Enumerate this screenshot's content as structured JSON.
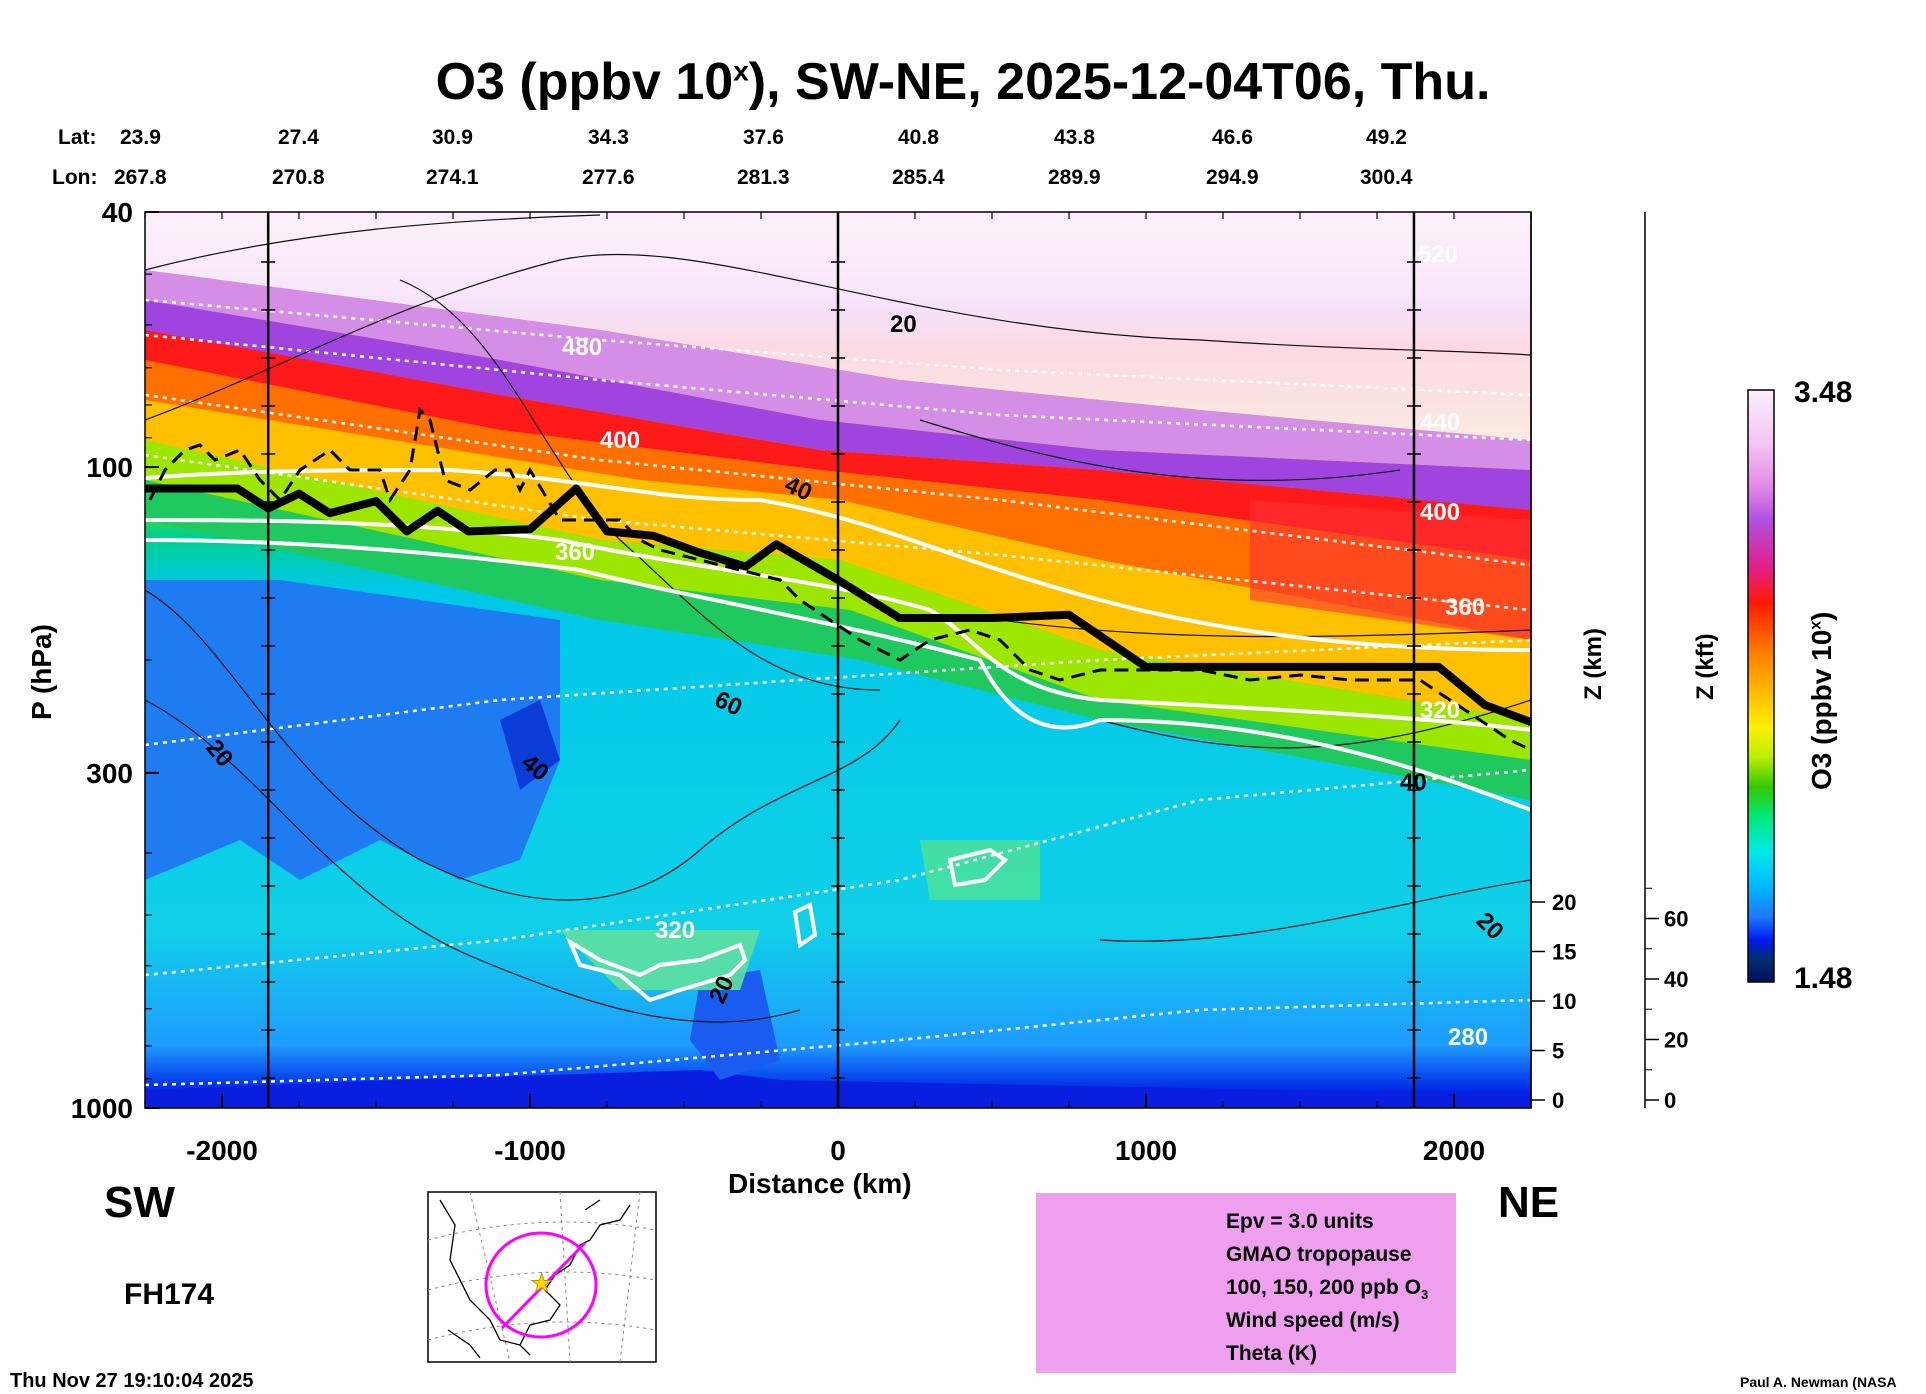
{
  "title_main": "O3 (ppbv 10",
  "title_sup": "x",
  "title_rest": "), SW-NE, 2025-12-04T06, Thu.",
  "lat_label": "Lat:",
  "lon_label": "Lon:",
  "lats": [
    "23.9",
    "27.4",
    "30.9",
    "34.3",
    "37.6",
    "40.8",
    "43.8",
    "46.6",
    "49.2"
  ],
  "lons": [
    "267.8",
    "270.8",
    "274.1",
    "277.6",
    "281.3",
    "285.4",
    "289.9",
    "294.9",
    "300.4"
  ],
  "direction_left": "SW",
  "direction_right": "NE",
  "forecast_hour": "FH174",
  "timestamp": "Thu Nov 27 19:10:04 2025",
  "credit": "Paul A. Newman (NASA",
  "colorbar": {
    "label": "O3 (ppbv 10",
    "label_sup": "x",
    "label_end": ")",
    "max": "3.48",
    "min": "1.48"
  },
  "legend": {
    "epv": "Epv = 3.0 units",
    "tropopause": "GMAO tropopause",
    "ozone": "100, 150, 200 ppb O",
    "ozone_sub": "3",
    "wind": "Wind speed (m/s)",
    "theta": "Theta (K)"
  },
  "colors": {
    "background": "#ffffff",
    "legend_bg": "#ee9fee",
    "map_circle": "#ff00ff",
    "map_star": "#ffd700"
  },
  "chart_data": {
    "type": "heatmap",
    "title": "O3 (ppbv 10^x), SW-NE, 2025-12-04T06, Thu.",
    "xlabel": "Distance (km)",
    "ylabel": "P (hPa)",
    "y2label": "Z (km)",
    "y3label": "Z (kft)",
    "colorbar_label": "O3 (ppbv 10^x)",
    "xlim": [
      -2250,
      2250
    ],
    "x_ticks": [
      "-2000",
      "-1000",
      "0",
      "1000",
      "2000"
    ],
    "x_tick_values": [
      -2000,
      -1000,
      0,
      1000,
      2000
    ],
    "y_ticks": [
      "40",
      "100",
      "300",
      "1000"
    ],
    "y_tick_values": [
      40,
      100,
      300,
      1000
    ],
    "z_km_ticks": [
      "20",
      "15",
      "10",
      "5",
      "0"
    ],
    "z_km_values": [
      20,
      15,
      10,
      5,
      0
    ],
    "z_kft_ticks": [
      "60",
      "40",
      "20",
      "0"
    ],
    "z_kft_values": [
      60,
      40,
      20,
      0
    ],
    "colorbar_range": [
      1.48,
      3.48
    ],
    "lat_lon_marker_distances_km": [
      -2250,
      -1750,
      -1250,
      -750,
      -250,
      250,
      750,
      1250,
      1750
    ],
    "vertical_reference_lines_km": [
      -1850,
      0,
      1870
    ],
    "tropopause_hPa": [
      {
        "x": -2250,
        "p": 108
      },
      {
        "x": -1950,
        "p": 108
      },
      {
        "x": -1850,
        "p": 116
      },
      {
        "x": -1750,
        "p": 110
      },
      {
        "x": -1650,
        "p": 118
      },
      {
        "x": -1500,
        "p": 113
      },
      {
        "x": -1400,
        "p": 126
      },
      {
        "x": -1300,
        "p": 117
      },
      {
        "x": -1200,
        "p": 126
      },
      {
        "x": -1000,
        "p": 125
      },
      {
        "x": -850,
        "p": 108
      },
      {
        "x": -750,
        "p": 126
      },
      {
        "x": -600,
        "p": 128
      },
      {
        "x": -450,
        "p": 136
      },
      {
        "x": -300,
        "p": 143
      },
      {
        "x": -200,
        "p": 132
      },
      {
        "x": 0,
        "p": 150
      },
      {
        "x": 200,
        "p": 172
      },
      {
        "x": 500,
        "p": 172
      },
      {
        "x": 750,
        "p": 170
      },
      {
        "x": 1000,
        "p": 205
      },
      {
        "x": 1500,
        "p": 205
      },
      {
        "x": 1950,
        "p": 205
      },
      {
        "x": 2100,
        "p": 235
      },
      {
        "x": 2250,
        "p": 250
      }
    ],
    "theta_labels_K": [
      "520",
      "480",
      "440",
      "400",
      "360",
      "320",
      "280"
    ],
    "wind_labels_ms": [
      "20",
      "40",
      "60"
    ],
    "ozone_contour_label": "320"
  }
}
